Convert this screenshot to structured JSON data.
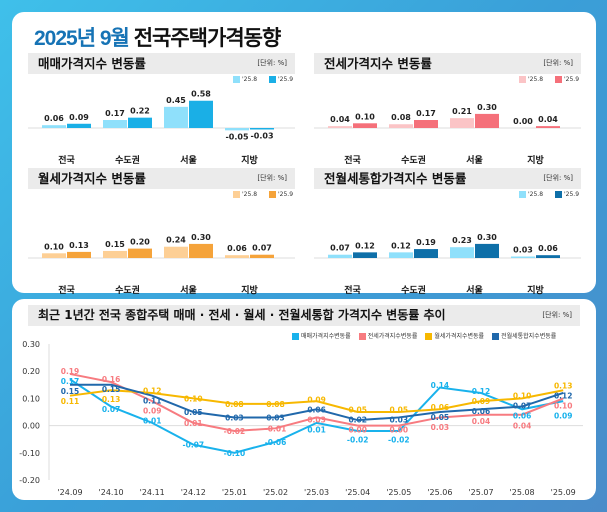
{
  "title": {
    "highlight": "2025년 9월",
    "rest": "전국주택가격동향"
  },
  "unit_label": "[단위: %]",
  "chart_data": [
    {
      "type": "bar",
      "title": "매매가격지수 변동률",
      "categories": [
        "전국",
        "수도권",
        "서울",
        "지방"
      ],
      "series": [
        {
          "name": "'25.8",
          "values": [
            0.06,
            0.17,
            0.45,
            -0.05
          ],
          "color": "#8fe0fb"
        },
        {
          "name": "'25.9",
          "values": [
            0.09,
            0.22,
            0.58,
            -0.03
          ],
          "color": "#1aafe6"
        }
      ]
    },
    {
      "type": "bar",
      "title": "전세가격지수 변동률",
      "categories": [
        "전국",
        "수도권",
        "서울",
        "지방"
      ],
      "series": [
        {
          "name": "'25.8",
          "values": [
            0.04,
            0.08,
            0.21,
            0.0
          ],
          "color": "#fbc4c6"
        },
        {
          "name": "'25.9",
          "values": [
            0.1,
            0.17,
            0.3,
            0.04
          ],
          "color": "#f5707a"
        }
      ]
    },
    {
      "type": "bar",
      "title": "월세가격지수 변동률",
      "categories": [
        "전국",
        "수도권",
        "서울",
        "지방"
      ],
      "series": [
        {
          "name": "'25.8",
          "values": [
            0.1,
            0.15,
            0.24,
            0.06
          ],
          "color": "#fdcf95"
        },
        {
          "name": "'25.9",
          "values": [
            0.13,
            0.2,
            0.3,
            0.07
          ],
          "color": "#f5a33a"
        }
      ]
    },
    {
      "type": "bar",
      "title": "전월세통합가격지수 변동률",
      "categories": [
        "전국",
        "수도권",
        "서울",
        "지방"
      ],
      "series": [
        {
          "name": "'25.8",
          "values": [
            0.07,
            0.12,
            0.23,
            0.03
          ],
          "color": "#8fe0fb"
        },
        {
          "name": "'25.9",
          "values": [
            0.12,
            0.19,
            0.3,
            0.06
          ],
          "color": "#0e6fa8"
        }
      ]
    },
    {
      "type": "line",
      "title": "최근 1년간 전국 종합주택 매매 · 전세 · 월세 · 전월세통합 가격지수 변동률 추이",
      "x": [
        "'24.09",
        "'24.10",
        "'24.11",
        "'24.12",
        "'25.01",
        "'25.02",
        "'25.03",
        "'25.04",
        "'25.05",
        "'25.06",
        "'25.07",
        "'25.08",
        "'25.09"
      ],
      "ylim": [
        -0.2,
        0.3
      ],
      "yticks": [
        "0.30",
        "0.20",
        "0.10",
        "0.00",
        "-0.10",
        "-0.20"
      ],
      "legend": "top-right",
      "series": [
        {
          "name": "매매가격지수변동률",
          "color": "#19b2ec",
          "values": [
            0.17,
            0.07,
            0.01,
            -0.07,
            -0.1,
            -0.06,
            0.01,
            -0.02,
            -0.02,
            0.14,
            0.12,
            0.06,
            0.09
          ]
        },
        {
          "name": "전세가격지수변동률",
          "color": "#f77b80",
          "values": [
            0.19,
            0.16,
            0.09,
            0.01,
            -0.02,
            -0.01,
            0.03,
            0.0,
            0.0,
            0.03,
            0.04,
            0.04,
            0.1
          ]
        },
        {
          "name": "월세가격지수변동률",
          "color": "#f7b800",
          "values": [
            0.11,
            0.13,
            0.12,
            0.1,
            0.08,
            0.08,
            0.09,
            0.05,
            0.05,
            0.06,
            0.09,
            0.1,
            0.13
          ]
        },
        {
          "name": "전월세통합지수변동률",
          "color": "#2068ab",
          "values": [
            0.15,
            0.15,
            0.11,
            0.05,
            0.03,
            0.03,
            0.06,
            0.02,
            0.03,
            0.05,
            0.06,
            0.07,
            0.12
          ]
        }
      ]
    }
  ]
}
